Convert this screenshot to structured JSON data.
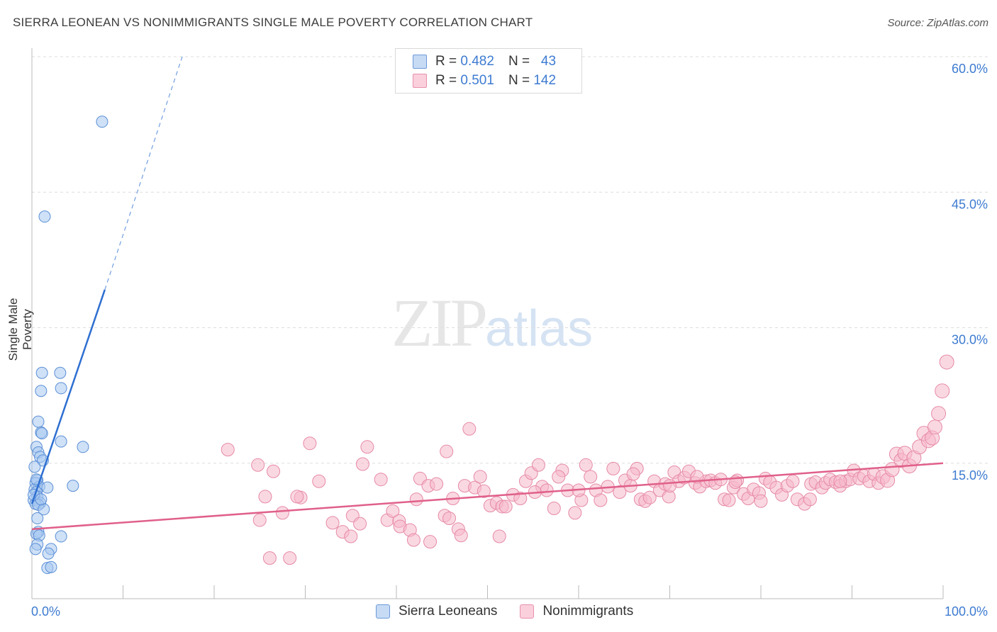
{
  "header": {
    "title": "SIERRA LEONEAN VS NONIMMIGRANTS SINGLE MALE POVERTY CORRELATION CHART",
    "source": "Source: ZipAtlas.com"
  },
  "watermark": {
    "zip": "ZIP",
    "atlas": "atlas"
  },
  "legend": {
    "rows": [
      {
        "r_label": "R = ",
        "r_value": "0.482",
        "n_label": "N = ",
        "n_value": "43",
        "color": "#a8c8f0"
      },
      {
        "r_label": "R = ",
        "r_value": "0.501",
        "n_label": "N = ",
        "n_value": "142",
        "color": "#f5b8cb"
      }
    ]
  },
  "chart_data": {
    "type": "scatter",
    "title": "SIERRA LEONEAN VS NONIMMIGRANTS SINGLE MALE POVERTY CORRELATION CHART",
    "xlabel": "",
    "ylabel": "Single Male Poverty",
    "xlim": [
      0,
      100
    ],
    "ylim": [
      0,
      60
    ],
    "x_tick_labels": [
      "0.0%",
      "100.0%"
    ],
    "y_tick_labels": [
      "15.0%",
      "30.0%",
      "45.0%",
      "60.0%"
    ],
    "y_ticks": [
      15,
      30,
      45,
      60
    ],
    "grid": true,
    "legend_placement": "bottom-center",
    "series": [
      {
        "name": "Sierra Leoneans",
        "color": "#a8c8f0",
        "stroke": "#5b8fd6",
        "trend": {
          "x": [
            0,
            8
          ],
          "y": [
            10.5,
            34.2
          ],
          "dash_to": [
            16.5,
            60
          ]
        },
        "points": [
          [
            7.7,
            52.8
          ],
          [
            1.4,
            42.3
          ],
          [
            1.1,
            25
          ],
          [
            3.1,
            25
          ],
          [
            1.0,
            23
          ],
          [
            3.2,
            23.3
          ],
          [
            0.7,
            19.6
          ],
          [
            1.0,
            18.4
          ],
          [
            1.1,
            18.3
          ],
          [
            3.2,
            17.4
          ],
          [
            5.6,
            16.8
          ],
          [
            0.5,
            16.8
          ],
          [
            0.7,
            16.2
          ],
          [
            0.9,
            15.7
          ],
          [
            1.2,
            15.3
          ],
          [
            0.3,
            14.6
          ],
          [
            0.6,
            13.1
          ],
          [
            0.4,
            12.8
          ],
          [
            0.8,
            12.4
          ],
          [
            1.7,
            12.3
          ],
          [
            4.5,
            12.5
          ],
          [
            0.3,
            12.1
          ],
          [
            0.5,
            11.8
          ],
          [
            0.6,
            11.3
          ],
          [
            0.2,
            10.9
          ],
          [
            0.9,
            10.6
          ],
          [
            0.4,
            10.5
          ],
          [
            0.7,
            10.4
          ],
          [
            1.3,
            9.9
          ],
          [
            0.6,
            8.9
          ],
          [
            0.7,
            7.4
          ],
          [
            0.5,
            7.2
          ],
          [
            0.8,
            7.0
          ],
          [
            3.2,
            6.9
          ],
          [
            0.6,
            6.0
          ],
          [
            0.4,
            5.5
          ],
          [
            2.1,
            5.5
          ],
          [
            1.8,
            5.0
          ],
          [
            1.7,
            3.4
          ],
          [
            2.1,
            3.5
          ],
          [
            0.5,
            13.2
          ],
          [
            0.2,
            11.5
          ],
          [
            1.0,
            11.0
          ]
        ]
      },
      {
        "name": "Nonimmigrants",
        "color": "#f5b8cb",
        "stroke": "#e68aa6",
        "trend": {
          "x": [
            0,
            100
          ],
          "y": [
            7.7,
            15.0
          ]
        },
        "points": [
          [
            21.5,
            16.5
          ],
          [
            24.8,
            14.8
          ],
          [
            26.5,
            14.1
          ],
          [
            25.6,
            11.3
          ],
          [
            27.5,
            9.5
          ],
          [
            25.0,
            8.7
          ],
          [
            26.1,
            4.5
          ],
          [
            28.3,
            4.5
          ],
          [
            29.5,
            11.2
          ],
          [
            30.5,
            17.2
          ],
          [
            31.5,
            13.0
          ],
          [
            29.1,
            11.3
          ],
          [
            33.0,
            8.4
          ],
          [
            34.1,
            7.4
          ],
          [
            35.0,
            6.9
          ],
          [
            35.2,
            9.2
          ],
          [
            36.0,
            8.3
          ],
          [
            36.3,
            14.9
          ],
          [
            36.8,
            16.8
          ],
          [
            38.3,
            13.2
          ],
          [
            39.0,
            8.7
          ],
          [
            39.6,
            9.7
          ],
          [
            40.3,
            8.6
          ],
          [
            40.4,
            8.0
          ],
          [
            41.5,
            7.6
          ],
          [
            41.9,
            6.5
          ],
          [
            42.2,
            11.0
          ],
          [
            42.6,
            13.3
          ],
          [
            43.5,
            12.5
          ],
          [
            43.7,
            6.3
          ],
          [
            44.4,
            12.7
          ],
          [
            45.5,
            16.3
          ],
          [
            45.3,
            9.2
          ],
          [
            45.8,
            8.9
          ],
          [
            46.2,
            11.1
          ],
          [
            46.8,
            7.7
          ],
          [
            47.1,
            7.0
          ],
          [
            47.5,
            12.5
          ],
          [
            48.0,
            18.8
          ],
          [
            48.6,
            12.3
          ],
          [
            49.2,
            13.5
          ],
          [
            49.6,
            11.9
          ],
          [
            50.3,
            10.3
          ],
          [
            51.0,
            10.6
          ],
          [
            51.6,
            10.2
          ],
          [
            51.3,
            6.9
          ],
          [
            52.0,
            10.2
          ],
          [
            52.8,
            11.5
          ],
          [
            53.6,
            11.1
          ],
          [
            54.2,
            13.0
          ],
          [
            54.8,
            13.9
          ],
          [
            55.6,
            14.8
          ],
          [
            56.0,
            12.4
          ],
          [
            56.5,
            12.0
          ],
          [
            57.3,
            10.0
          ],
          [
            58.2,
            14.2
          ],
          [
            58.8,
            12.0
          ],
          [
            59.6,
            9.5
          ],
          [
            60.3,
            10.9
          ],
          [
            60.8,
            14.8
          ],
          [
            61.3,
            13.5
          ],
          [
            61.9,
            12.0
          ],
          [
            62.4,
            10.9
          ],
          [
            63.2,
            12.4
          ],
          [
            63.8,
            14.4
          ],
          [
            64.5,
            11.8
          ],
          [
            65.1,
            13.1
          ],
          [
            65.7,
            12.5
          ],
          [
            66.4,
            14.4
          ],
          [
            66.8,
            11.0
          ],
          [
            67.3,
            10.8
          ],
          [
            67.8,
            11.2
          ],
          [
            68.3,
            13.0
          ],
          [
            68.9,
            12.0
          ],
          [
            69.5,
            12.7
          ],
          [
            69.9,
            11.3
          ],
          [
            70.5,
            14.0
          ],
          [
            71.0,
            13.0
          ],
          [
            71.6,
            13.4
          ],
          [
            72.1,
            14.1
          ],
          [
            72.8,
            12.8
          ],
          [
            73.3,
            12.4
          ],
          [
            74.0,
            13.0
          ],
          [
            74.5,
            13.1
          ],
          [
            75.0,
            12.8
          ],
          [
            75.6,
            13.2
          ],
          [
            76.0,
            11.0
          ],
          [
            76.5,
            10.9
          ],
          [
            77.0,
            12.3
          ],
          [
            77.4,
            13.1
          ],
          [
            78.1,
            11.6
          ],
          [
            78.6,
            11.1
          ],
          [
            79.2,
            12.1
          ],
          [
            79.8,
            11.7
          ],
          [
            80.5,
            13.3
          ],
          [
            81.0,
            12.9
          ],
          [
            81.7,
            12.3
          ],
          [
            82.3,
            11.5
          ],
          [
            82.9,
            12.5
          ],
          [
            83.5,
            13.0
          ],
          [
            84.0,
            11.0
          ],
          [
            84.8,
            10.5
          ],
          [
            85.5,
            12.7
          ],
          [
            86.0,
            12.9
          ],
          [
            86.7,
            12.3
          ],
          [
            87.1,
            12.8
          ],
          [
            87.6,
            13.2
          ],
          [
            88.2,
            12.9
          ],
          [
            88.7,
            12.5
          ],
          [
            89.3,
            13.0
          ],
          [
            89.8,
            13.2
          ],
          [
            90.2,
            14.2
          ],
          [
            90.8,
            13.3
          ],
          [
            91.3,
            13.6
          ],
          [
            91.9,
            13.0
          ],
          [
            92.4,
            13.8
          ],
          [
            92.9,
            12.8
          ],
          [
            93.4,
            13.5
          ],
          [
            93.9,
            13.1
          ],
          [
            94.4,
            14.3
          ],
          [
            94.9,
            16.0
          ],
          [
            95.4,
            15.3
          ],
          [
            95.8,
            16.1
          ],
          [
            96.3,
            14.7
          ],
          [
            96.8,
            15.6
          ],
          [
            97.4,
            16.8
          ],
          [
            97.9,
            18.3
          ],
          [
            98.4,
            17.5
          ],
          [
            98.8,
            17.8
          ],
          [
            99.1,
            19.0
          ],
          [
            99.5,
            20.5
          ],
          [
            99.9,
            23.0
          ],
          [
            100.4,
            26.2
          ],
          [
            88.7,
            13.0
          ],
          [
            85.4,
            11.0
          ],
          [
            80.0,
            10.8
          ],
          [
            77.2,
            12.9
          ],
          [
            73.0,
            13.5
          ],
          [
            70.0,
            12.5
          ],
          [
            66.0,
            13.8
          ],
          [
            60.0,
            12.0
          ],
          [
            57.8,
            13.5
          ],
          [
            55.2,
            11.8
          ]
        ]
      }
    ]
  },
  "bottom_legend": [
    {
      "label": "Sierra Leoneans",
      "color": "#a8c8f0"
    },
    {
      "label": "Nonimmigrants",
      "color": "#f5b8cb"
    }
  ]
}
